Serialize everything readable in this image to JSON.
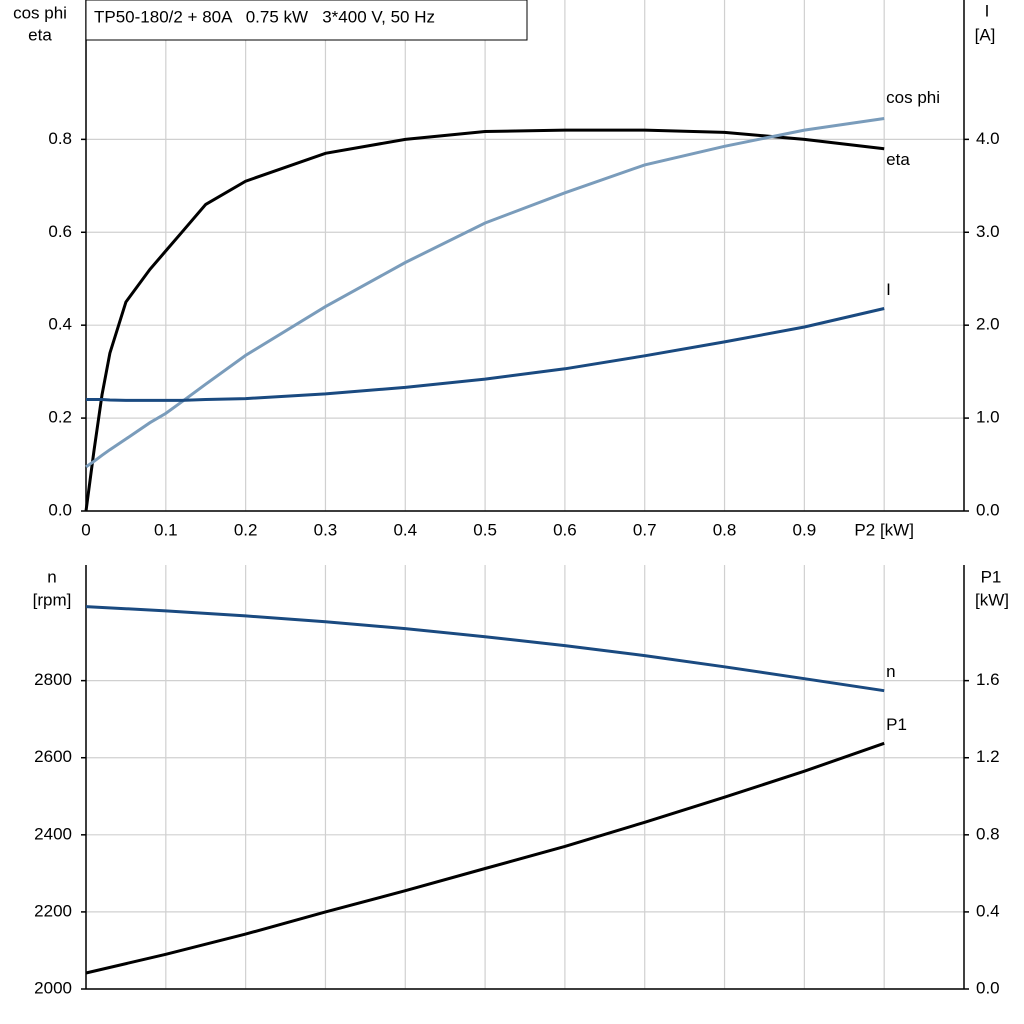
{
  "chart_data": [
    {
      "type": "line",
      "title": "TP50-180/2 + 80A   0.75 kW   3*400 V, 50 Hz",
      "ylabel": [
        "cos phi",
        "eta"
      ],
      "y2label": [
        "I",
        "[A]"
      ],
      "x": [
        0,
        0.01,
        0.02,
        0.03,
        0.05,
        0.08,
        0.1,
        0.12,
        0.15,
        0.2,
        0.3,
        0.4,
        0.5,
        0.6,
        0.7,
        0.8,
        0.9,
        1.0
      ],
      "xlim": [
        0,
        1.1
      ],
      "xticks": [
        {
          "value": 0,
          "label": "0"
        },
        0.1,
        0.2,
        0.3,
        0.4,
        0.5,
        0.6,
        0.7,
        0.8,
        0.9,
        {
          "value": 1.0,
          "label": "P2 [kW]"
        }
      ],
      "ylim": [
        0,
        1.1
      ],
      "yticks": [
        {
          "value": 0,
          "label": "0.0"
        },
        0.2,
        0.4,
        0.6,
        0.8
      ],
      "y2lim": [
        0,
        5.5
      ],
      "y2ticks": [
        {
          "value": 0,
          "label": "0.0"
        },
        {
          "value": 1,
          "label": "1.0"
        },
        {
          "value": 2,
          "label": "2.0"
        },
        {
          "value": 3,
          "label": "3.0"
        },
        {
          "value": 4,
          "label": "4.0"
        }
      ],
      "grid": true,
      "series": [
        {
          "name": "eta",
          "color": "#000000",
          "values": [
            0,
            0.13,
            0.25,
            0.34,
            0.45,
            0.52,
            0.56,
            0.6,
            0.66,
            0.71,
            0.77,
            0.8,
            0.817,
            0.82,
            0.82,
            0.815,
            0.8,
            0.78
          ]
        },
        {
          "name": "cos phi",
          "color": "#7a9cbb",
          "values": [
            0.095,
            0.107,
            0.12,
            0.132,
            0.155,
            0.19,
            0.21,
            0.235,
            0.273,
            0.335,
            0.44,
            0.535,
            0.62,
            0.685,
            0.745,
            0.785,
            0.82,
            0.845
          ]
        },
        {
          "name": "I",
          "color": "#1a4a80",
          "axis": "y2",
          "values": [
            1.2,
            1.2,
            1.2,
            1.195,
            1.19,
            1.19,
            1.19,
            1.19,
            1.2,
            1.21,
            1.26,
            1.33,
            1.42,
            1.53,
            1.67,
            1.82,
            1.98,
            2.18
          ]
        }
      ]
    },
    {
      "type": "line",
      "ylabel": [
        "n",
        "[rpm]"
      ],
      "y2label": [
        "P1",
        "[kW]"
      ],
      "x": [
        0,
        0.1,
        0.2,
        0.3,
        0.4,
        0.5,
        0.6,
        0.7,
        0.8,
        0.9,
        1.0
      ],
      "xlim": [
        0,
        1.1
      ],
      "xticks": [
        0,
        0.1,
        0.2,
        0.3,
        0.4,
        0.5,
        0.6,
        0.7,
        0.8,
        0.9,
        1.0
      ],
      "xtick_labels": false,
      "ylim": [
        2000,
        3100
      ],
      "yticks": [
        2000,
        2200,
        2400,
        2600,
        2800
      ],
      "y2lim": [
        0,
        2.2
      ],
      "y2ticks": [
        {
          "value": 0,
          "label": "0.0"
        },
        0.4,
        0.8,
        1.2,
        1.6
      ],
      "grid": true,
      "series": [
        {
          "name": "n",
          "color": "#1a4a80",
          "values": [
            2992,
            2981,
            2968,
            2953,
            2935,
            2914,
            2891,
            2865,
            2836,
            2805,
            2774
          ]
        },
        {
          "name": "P1",
          "color": "#000000",
          "axis": "y2",
          "values": [
            0.083,
            0.18,
            0.285,
            0.4,
            0.51,
            0.625,
            0.74,
            0.865,
            0.995,
            1.13,
            1.275
          ]
        }
      ]
    }
  ]
}
